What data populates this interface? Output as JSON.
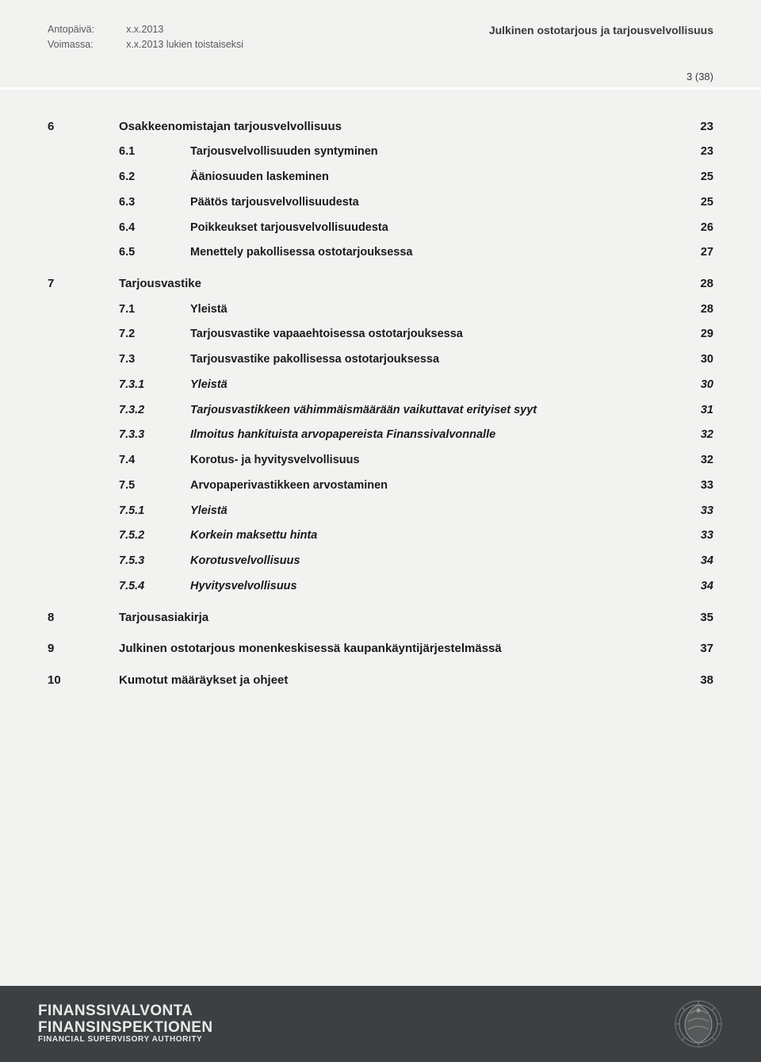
{
  "header": {
    "label_issue": "Antopäivä:",
    "label_valid": "Voimassa:",
    "value_issue": "x.x.2013",
    "value_valid": "x.x.2013 lukien toistaiseksi",
    "title": "Julkinen ostotarjous ja tarjousvelvollisuus",
    "page": "3 (38)"
  },
  "toc": [
    {
      "level": 1,
      "chap": "6",
      "sub": "",
      "title": "Osakkeenomistajan tarjousvelvollisuus",
      "page": "23"
    },
    {
      "level": 2,
      "chap": "",
      "sub": "6.1",
      "title": "Tarjousvelvollisuuden syntyminen",
      "page": "23"
    },
    {
      "level": 2,
      "chap": "",
      "sub": "6.2",
      "title": "Ääniosuuden laskeminen",
      "page": "25"
    },
    {
      "level": 2,
      "chap": "",
      "sub": "6.3",
      "title": "Päätös tarjousvelvollisuudesta",
      "page": "25"
    },
    {
      "level": 2,
      "chap": "",
      "sub": "6.4",
      "title": "Poikkeukset tarjousvelvollisuudesta",
      "page": "26"
    },
    {
      "level": 2,
      "chap": "",
      "sub": "6.5",
      "title": "Menettely pakollisessa ostotarjouksessa",
      "page": "27"
    },
    {
      "level": 1,
      "chap": "7",
      "sub": "",
      "title": "Tarjousvastike",
      "page": "28"
    },
    {
      "level": 2,
      "chap": "",
      "sub": "7.1",
      "title": "Yleistä",
      "page": "28"
    },
    {
      "level": 2,
      "chap": "",
      "sub": "7.2",
      "title": "Tarjousvastike vapaaehtoisessa ostotarjouksessa",
      "page": "29"
    },
    {
      "level": 2,
      "chap": "",
      "sub": "7.3",
      "title": "Tarjousvastike pakollisessa ostotarjouksessa",
      "page": "30"
    },
    {
      "level": 3,
      "chap": "",
      "sub": "7.3.1",
      "title": "Yleistä",
      "page": "30"
    },
    {
      "level": 3,
      "chap": "",
      "sub": "7.3.2",
      "title": "Tarjousvastikkeen vähimmäismäärään vaikuttavat erityiset syyt",
      "page": "31"
    },
    {
      "level": 3,
      "chap": "",
      "sub": "7.3.3",
      "title": "Ilmoitus hankituista arvopapereista Finanssivalvonnalle",
      "page": "32"
    },
    {
      "level": 2,
      "chap": "",
      "sub": "7.4",
      "title": "Korotus- ja hyvitysvelvollisuus",
      "page": "32"
    },
    {
      "level": 2,
      "chap": "",
      "sub": "7.5",
      "title": "Arvopaperivastikkeen arvostaminen",
      "page": "33"
    },
    {
      "level": 3,
      "chap": "",
      "sub": "7.5.1",
      "title": "Yleistä",
      "page": "33"
    },
    {
      "level": 3,
      "chap": "",
      "sub": "7.5.2",
      "title": "Korkein maksettu hinta",
      "page": "33"
    },
    {
      "level": 3,
      "chap": "",
      "sub": "7.5.3",
      "title": "Korotusvelvollisuus",
      "page": "34"
    },
    {
      "level": 3,
      "chap": "",
      "sub": "7.5.4",
      "title": "Hyvitysvelvollisuus",
      "page": "34"
    },
    {
      "level": 1,
      "chap": "8",
      "sub": "",
      "title": "Tarjousasiakirja",
      "page": "35"
    },
    {
      "level": 1,
      "chap": "9",
      "sub": "",
      "title": "Julkinen ostotarjous monenkeskisessä kaupankäyntijärjestelmässä",
      "page": "37"
    },
    {
      "level": 1,
      "chap": "10",
      "sub": "",
      "title": "Kumotut määräykset ja ohjeet",
      "page": "38"
    }
  ],
  "footer": {
    "line1": "FINANSSIVALVONTA",
    "line2": "FINANSINSPEKTIONEN",
    "line3": "FINANCIAL SUPERVISORY AUTHORITY"
  },
  "style": {
    "background": "#f2f2f0",
    "text": "#1a1a1a",
    "muted": "#5a5a5a",
    "footer_bg": "#3c4043",
    "footer_text": "#e9e9e7",
    "divider": "#ffffff"
  }
}
